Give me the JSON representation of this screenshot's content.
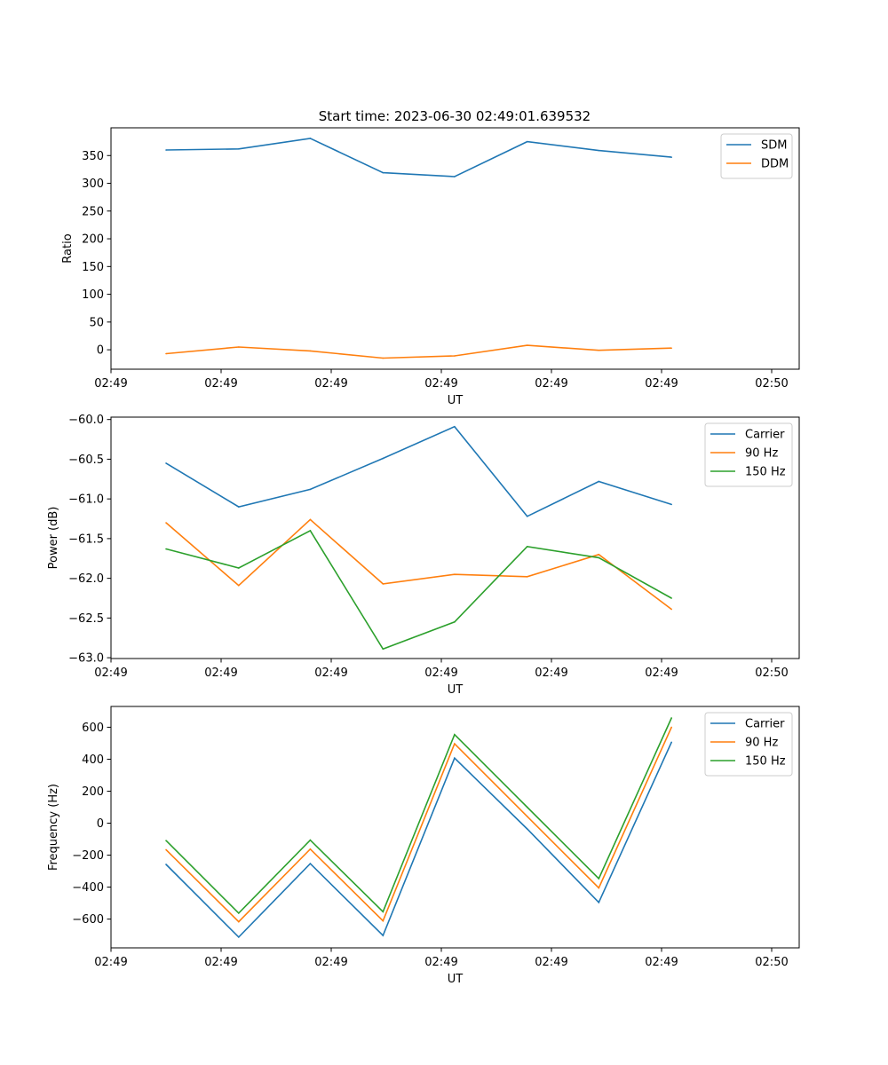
{
  "figure": {
    "title": "Start time: 2023-06-30 02:49:01.639532"
  },
  "colors": {
    "blue": "#1f77b4",
    "orange": "#ff7f0e",
    "green": "#2ca02c"
  },
  "chart_data": [
    {
      "type": "line",
      "title": "Start time: 2023-06-30 02:49:01.639532",
      "xlabel": "UT",
      "ylabel": "Ratio",
      "xlim": [
        0,
        6.25
      ],
      "ylim": [
        -35,
        400
      ],
      "x": [
        0.5,
        1.16,
        1.81,
        2.47,
        3.12,
        3.78,
        4.43,
        5.09
      ],
      "xticks": [
        0,
        1,
        2,
        3,
        4,
        5,
        6
      ],
      "xtick_labels": [
        "02:49",
        "02:49",
        "02:49",
        "02:49",
        "02:49",
        "02:49",
        "02:50"
      ],
      "yticks": [
        0,
        50,
        100,
        150,
        200,
        250,
        300,
        350
      ],
      "ytick_labels": [
        "0",
        "50",
        "100",
        "150",
        "200",
        "250",
        "300",
        "350"
      ],
      "legend": "top-right",
      "series": [
        {
          "name": "SDM",
          "color": "#1f77b4",
          "values": [
            360,
            362,
            381,
            319,
            312,
            375,
            359,
            347
          ]
        },
        {
          "name": "DDM",
          "color": "#ff7f0e",
          "values": [
            -7,
            5,
            -2,
            -15,
            -11,
            8,
            -1,
            3
          ]
        }
      ]
    },
    {
      "type": "line",
      "xlabel": "UT",
      "ylabel": "Power (dB)",
      "xlim": [
        0,
        6.25
      ],
      "ylim": [
        -63.01,
        -59.97
      ],
      "x": [
        0.5,
        1.16,
        1.81,
        2.47,
        3.12,
        3.78,
        4.43,
        5.09
      ],
      "xticks": [
        0,
        1,
        2,
        3,
        4,
        5,
        6
      ],
      "xtick_labels": [
        "02:49",
        "02:49",
        "02:49",
        "02:49",
        "02:49",
        "02:49",
        "02:50"
      ],
      "yticks": [
        -63.0,
        -62.5,
        -62.0,
        -61.5,
        -61.0,
        -60.5,
        -60.0
      ],
      "ytick_labels": [
        "−63.0",
        "−62.5",
        "−62.0",
        "−61.5",
        "−61.0",
        "−60.5",
        "−60.0"
      ],
      "legend": "top-right",
      "series": [
        {
          "name": "Carrier",
          "color": "#1f77b4",
          "values": [
            -60.55,
            -61.1,
            -60.88,
            -60.49,
            -60.09,
            -61.22,
            -60.78,
            -61.07
          ]
        },
        {
          "name": "90 Hz",
          "color": "#ff7f0e",
          "values": [
            -61.3,
            -62.09,
            -61.26,
            -62.07,
            -61.95,
            -61.98,
            -61.7,
            -62.39
          ]
        },
        {
          "name": "150 Hz",
          "color": "#2ca02c",
          "values": [
            -61.63,
            -61.87,
            -61.4,
            -62.89,
            -62.55,
            -61.6,
            -61.74,
            -62.25
          ]
        }
      ]
    },
    {
      "type": "line",
      "xlabel": "UT",
      "ylabel": "Frequency (Hz)",
      "xlim": [
        0,
        6.25
      ],
      "ylim": [
        -780,
        730
      ],
      "x": [
        0.5,
        1.16,
        1.81,
        2.47,
        3.12,
        3.78,
        4.43,
        5.09
      ],
      "xticks": [
        0,
        1,
        2,
        3,
        4,
        5,
        6
      ],
      "xtick_labels": [
        "02:49",
        "02:49",
        "02:49",
        "02:49",
        "02:49",
        "02:49",
        "02:50"
      ],
      "yticks": [
        -600,
        -400,
        -200,
        0,
        200,
        400,
        600
      ],
      "ytick_labels": [
        "−600",
        "−400",
        "−200",
        "0",
        "200",
        "400",
        "600"
      ],
      "legend": "top-right",
      "series": [
        {
          "name": "Carrier",
          "color": "#1f77b4",
          "values": [
            -258,
            -713,
            -253,
            -703,
            407,
            -36,
            -496,
            506
          ]
        },
        {
          "name": "90 Hz",
          "color": "#ff7f0e",
          "values": [
            -166,
            -617,
            -162,
            -611,
            497,
            42,
            -405,
            600
          ]
        },
        {
          "name": "150 Hz",
          "color": "#2ca02c",
          "values": [
            -109,
            -563,
            -106,
            -554,
            554,
            100,
            -347,
            658
          ]
        }
      ]
    }
  ]
}
